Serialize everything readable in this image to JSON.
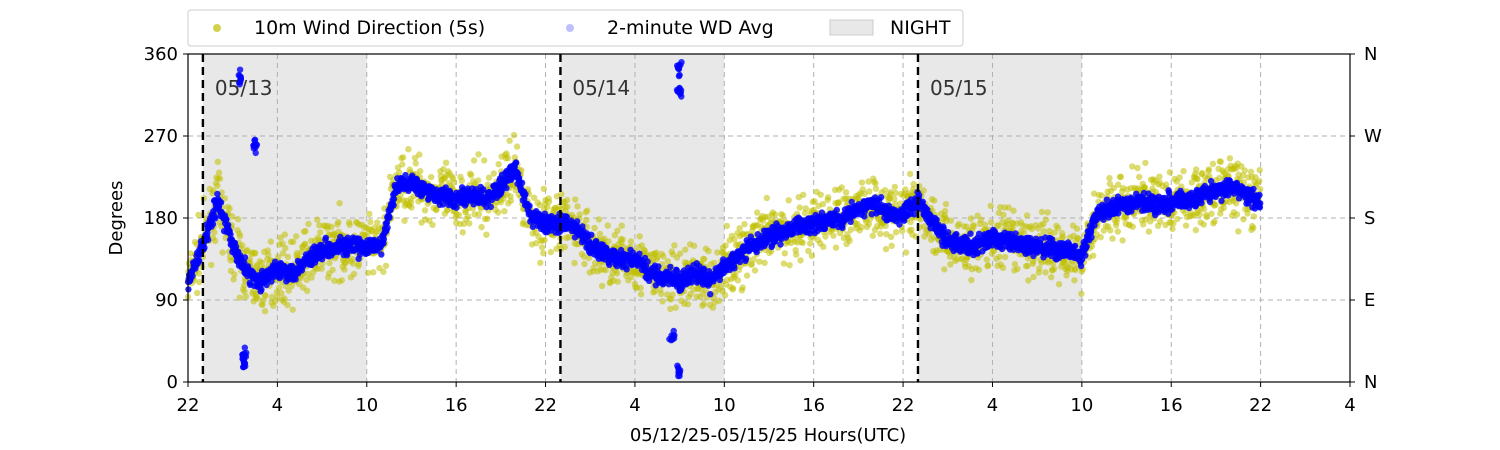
{
  "chart_data": {
    "type": "scatter",
    "title": "",
    "xlabel": "05/12/25-05/15/25  Hours(UTC)",
    "ylabel": "Degrees",
    "x_unit": "hours UTC",
    "x_tick_labels": [
      "22",
      "4",
      "10",
      "16",
      "22",
      "4",
      "10",
      "16",
      "22",
      "4",
      "10",
      "16",
      "22",
      "4"
    ],
    "y_ticks": [
      0,
      90,
      180,
      270,
      360
    ],
    "y_tick_labels": [
      "0",
      "90",
      "180",
      "270",
      "360"
    ],
    "y2_tick_labels": [
      "N",
      "E",
      "S",
      "W",
      "N"
    ],
    "ylim": [
      0,
      360
    ],
    "grid": true,
    "legend_position": "top-left, above plot",
    "date_markers": [
      "05/13",
      "05/14",
      "05/15"
    ],
    "night_label": "NIGHT",
    "colors": {
      "wd_5s": "#bfbf00",
      "wd_2min": "#0000ff",
      "night": "#e8e8e8",
      "grid": "#b0b0b0"
    },
    "series": [
      {
        "name": "10m Wind Direction (5s)",
        "x": [
          "05/12 22:00",
          "05/12 23:00",
          "05/13 00:00",
          "05/13 01:00",
          "05/13 02:00",
          "05/13 03:00",
          "05/13 04:00",
          "05/13 05:00",
          "05/13 06:00",
          "05/13 07:00",
          "05/13 08:00",
          "05/13 09:00",
          "05/13 10:00",
          "05/13 11:00",
          "05/13 12:00",
          "05/13 13:00",
          "05/13 14:00",
          "05/13 15:00",
          "05/13 16:00",
          "05/13 17:00",
          "05/13 18:00",
          "05/13 19:00",
          "05/13 20:00",
          "05/13 21:00",
          "05/13 22:00",
          "05/13 23:00",
          "05/14 00:00",
          "05/14 01:00",
          "05/14 02:00",
          "05/14 03:00",
          "05/14 04:00",
          "05/14 05:00",
          "05/14 06:00",
          "05/14 07:00",
          "05/14 08:00",
          "05/14 09:00",
          "05/14 10:00",
          "05/14 11:00",
          "05/14 12:00",
          "05/14 13:00",
          "05/14 14:00",
          "05/14 15:00",
          "05/14 16:00",
          "05/14 17:00",
          "05/14 18:00",
          "05/14 19:00",
          "05/14 20:00",
          "05/14 21:00",
          "05/14 22:00",
          "05/14 23:00",
          "05/15 00:00",
          "05/15 01:00",
          "05/15 02:00",
          "05/15 03:00",
          "05/15 04:00",
          "05/15 05:00",
          "05/15 06:00",
          "05/15 07:00",
          "05/15 08:00",
          "05/15 09:00",
          "05/15 10:00",
          "05/15 11:00",
          "05/15 12:00",
          "05/15 13:00",
          "05/15 14:00",
          "05/15 15:00",
          "05/15 16:00",
          "05/15 17:00",
          "05/15 18:00",
          "05/15 19:00",
          "05/15 20:00",
          "05/15 21:00",
          "05/15 22:00"
        ],
        "y": [
          110,
          150,
          200,
          150,
          120,
          110,
          125,
          120,
          135,
          145,
          150,
          148,
          148,
          150,
          215,
          220,
          210,
          205,
          200,
          205,
          200,
          215,
          235,
          180,
          175,
          175,
          170,
          150,
          140,
          135,
          135,
          120,
          115,
          110,
          120,
          110,
          125,
          140,
          150,
          160,
          165,
          170,
          175,
          180,
          180,
          190,
          195,
          185,
          185,
          200,
          175,
          155,
          150,
          150,
          158,
          155,
          150,
          150,
          145,
          145,
          138,
          185,
          190,
          195,
          200,
          195,
          198,
          200,
          205,
          210,
          215,
          205,
          195
        ]
      },
      {
        "name": "2-minute WD Avg",
        "x": [
          "05/12 22:00",
          "05/12 23:00",
          "05/13 00:00",
          "05/13 01:00",
          "05/13 02:00",
          "05/13 03:00",
          "05/13 04:00",
          "05/13 05:00",
          "05/13 06:00",
          "05/13 07:00",
          "05/13 08:00",
          "05/13 09:00",
          "05/13 10:00",
          "05/13 11:00",
          "05/13 12:00",
          "05/13 13:00",
          "05/13 14:00",
          "05/13 15:00",
          "05/13 16:00",
          "05/13 17:00",
          "05/13 18:00",
          "05/13 19:00",
          "05/13 20:00",
          "05/13 21:00",
          "05/13 22:00",
          "05/13 23:00",
          "05/14 00:00",
          "05/14 01:00",
          "05/14 02:00",
          "05/14 03:00",
          "05/14 04:00",
          "05/14 05:00",
          "05/14 06:00",
          "05/14 07:00",
          "05/14 08:00",
          "05/14 09:00",
          "05/14 10:00",
          "05/14 11:00",
          "05/14 12:00",
          "05/14 13:00",
          "05/14 14:00",
          "05/14 15:00",
          "05/14 16:00",
          "05/14 17:00",
          "05/14 18:00",
          "05/14 19:00",
          "05/14 20:00",
          "05/14 21:00",
          "05/14 22:00",
          "05/14 23:00",
          "05/15 00:00",
          "05/15 01:00",
          "05/15 02:00",
          "05/15 03:00",
          "05/15 04:00",
          "05/15 05:00",
          "05/15 06:00",
          "05/15 07:00",
          "05/15 08:00",
          "05/15 09:00",
          "05/15 10:00",
          "05/15 11:00",
          "05/15 12:00",
          "05/15 13:00",
          "05/15 14:00",
          "05/15 15:00",
          "05/15 16:00",
          "05/15 17:00",
          "05/15 18:00",
          "05/15 19:00",
          "05/15 20:00",
          "05/15 21:00",
          "05/15 22:00"
        ],
        "y": [
          110,
          150,
          200,
          150,
          120,
          110,
          125,
          120,
          135,
          145,
          150,
          148,
          148,
          150,
          215,
          220,
          210,
          205,
          200,
          205,
          200,
          215,
          235,
          180,
          175,
          175,
          170,
          150,
          140,
          135,
          135,
          120,
          115,
          110,
          120,
          110,
          125,
          140,
          150,
          160,
          165,
          170,
          175,
          180,
          180,
          190,
          195,
          185,
          185,
          200,
          175,
          155,
          150,
          150,
          158,
          155,
          150,
          150,
          145,
          145,
          138,
          185,
          190,
          195,
          200,
          195,
          198,
          200,
          205,
          210,
          215,
          205,
          195
        ]
      }
    ],
    "outliers_2min": {
      "x": [
        "05/13 01:30",
        "05/13 01:45",
        "05/13 02:30",
        "05/13 01:45",
        "05/14 07:00",
        "05/14 07:00",
        "05/14 06:30",
        "05/14 07:00"
      ],
      "y": [
        335,
        30,
        260,
        20,
        345,
        320,
        50,
        10
      ]
    },
    "night_periods": [
      {
        "start": "05/12 23:00",
        "end": "05/13 10:00"
      },
      {
        "start": "05/13 23:00",
        "end": "05/14 10:00"
      },
      {
        "start": "05/14 23:00",
        "end": "05/15 10:00"
      }
    ],
    "date_lines": [
      "05/12 23:00",
      "05/13 23:00",
      "05/14 23:00"
    ]
  }
}
